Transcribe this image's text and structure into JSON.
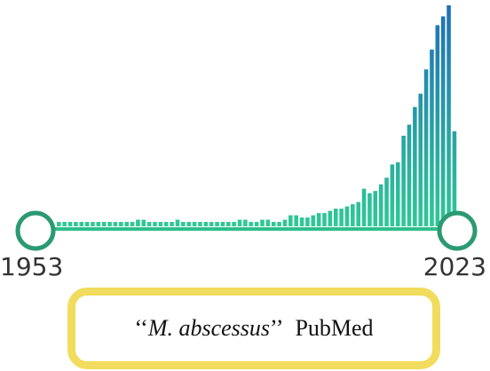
{
  "timeline": {
    "start_year": "1953",
    "end_year": "2023",
    "chart_data": {
      "type": "bar",
      "x": [
        1953,
        1954,
        1955,
        1956,
        1957,
        1958,
        1959,
        1960,
        1961,
        1962,
        1963,
        1964,
        1965,
        1966,
        1967,
        1968,
        1969,
        1970,
        1971,
        1972,
        1973,
        1974,
        1975,
        1976,
        1977,
        1978,
        1979,
        1980,
        1981,
        1982,
        1983,
        1984,
        1985,
        1986,
        1987,
        1988,
        1989,
        1990,
        1991,
        1992,
        1993,
        1994,
        1995,
        1996,
        1997,
        1998,
        1999,
        2000,
        2001,
        2002,
        2003,
        2004,
        2005,
        2006,
        2007,
        2008,
        2009,
        2010,
        2011,
        2012,
        2013,
        2014,
        2015,
        2016,
        2017,
        2018,
        2019,
        2020,
        2021,
        2022,
        2023
      ],
      "values": [
        2,
        2,
        2,
        2,
        2,
        2,
        2,
        2,
        2,
        2,
        2,
        2,
        2,
        2,
        3,
        3,
        2,
        2,
        2,
        2,
        2,
        3,
        2,
        2,
        2,
        2,
        2,
        2,
        2,
        2,
        2,
        2,
        3,
        3,
        2,
        2,
        3,
        3,
        2,
        2,
        3,
        5,
        5,
        4,
        4,
        5,
        6,
        6,
        7,
        8,
        8,
        9,
        10,
        11,
        17,
        15,
        16,
        19,
        22,
        28,
        29,
        41,
        46,
        54,
        60,
        71,
        80,
        91,
        95,
        100,
        43
      ],
      "ylim": [
        0,
        100
      ],
      "colors": {
        "bar_bottom": "#2ec995",
        "bar_top": "#1f6fb8",
        "baseline": "#2fbf8d",
        "handle_stroke": "#2b9a72",
        "handle_fill": "#ffffff"
      }
    }
  },
  "caption": {
    "quote_open": "‘‘",
    "species": "M. abscessus",
    "quote_close": "’’",
    "source": "PubMed"
  }
}
